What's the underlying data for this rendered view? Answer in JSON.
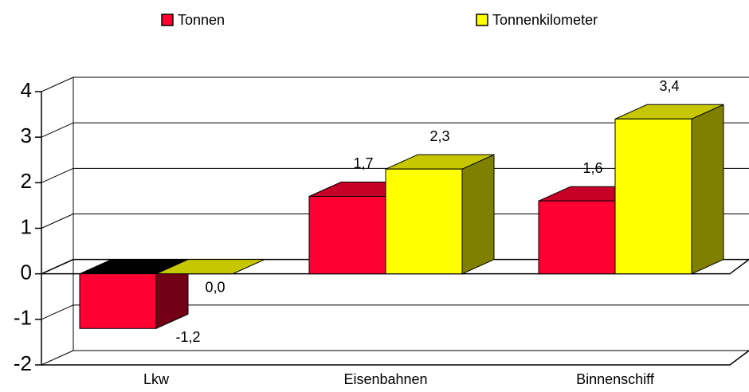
{
  "chart_data": {
    "type": "bar3d",
    "categories": [
      "Lkw",
      "Eisenbahnen",
      "Binnenschiff"
    ],
    "series": [
      {
        "name": "Tonnen",
        "color": "#ff0033",
        "values": [
          -1.2,
          1.7,
          1.6
        ],
        "value_labels": [
          "-1,2",
          "1,7",
          "1,6"
        ]
      },
      {
        "name": "Tonnenkilometer",
        "color": "#ffff00",
        "values": [
          0.0,
          2.3,
          3.4
        ],
        "value_labels": [
          "0,0",
          "2,3",
          "3,4"
        ]
      }
    ],
    "ylim": [
      -2,
      4
    ],
    "yticks": [
      -2,
      -1,
      0,
      1,
      2,
      3,
      4
    ],
    "grid": true,
    "legend": "top"
  }
}
